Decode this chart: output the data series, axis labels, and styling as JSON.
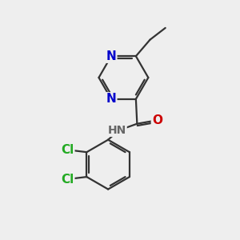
{
  "background_color": "#eeeeee",
  "bond_color": "#333333",
  "bond_width": 1.6,
  "atom_colors": {
    "N": "#0000cc",
    "O": "#cc0000",
    "Cl": "#22aa22",
    "H": "#666666"
  },
  "font_size_atom": 11,
  "font_size_nh": 10
}
